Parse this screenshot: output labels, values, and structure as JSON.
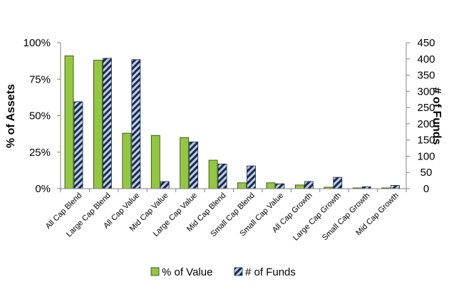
{
  "chart_data": {
    "type": "bar",
    "categories": [
      "All Cap Blend",
      "Large Cap Blend",
      "All Cap Value",
      "Mid Cap Value",
      "Large Cap Value",
      "Mid Cap Blend",
      "Small Cap Blend",
      "Small Cap Value",
      "All Cap Growth",
      "Large Cap Growth",
      "Small Cap Growth",
      "Mid Cap Growth"
    ],
    "series": [
      {
        "name": "% of Value",
        "axis": "left",
        "unit": "percent",
        "values": [
          91,
          88,
          38,
          36.5,
          35,
          19.5,
          4,
          4,
          2.5,
          1,
          0.5,
          0.5
        ]
      },
      {
        "name": "# of Funds",
        "axis": "right",
        "values": [
          268,
          402,
          398,
          22,
          144,
          76,
          70,
          15,
          22,
          35,
          6,
          10
        ]
      }
    ],
    "ylabel_left": "% of Assets",
    "ylabel_right": "# of Funds",
    "ylim_left": [
      0,
      100
    ],
    "ylim_right": [
      0,
      450
    ],
    "yticks_left": [
      "0%",
      "25%",
      "50%",
      "75%",
      "100%"
    ],
    "yticks_right": [
      "0",
      "50",
      "100",
      "150",
      "200",
      "250",
      "300",
      "350",
      "400",
      "450"
    ],
    "legend_position": "bottom",
    "grid": false,
    "colors": {
      "value": "#92c83e",
      "value_border": "#2a3a0e",
      "funds_light": "#b7cff0",
      "funds_dark": "#1f2a44"
    }
  }
}
